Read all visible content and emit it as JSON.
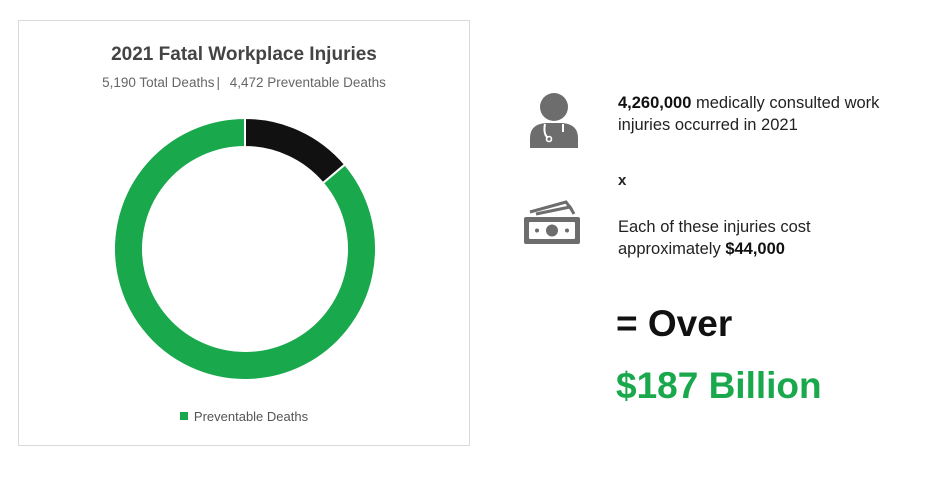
{
  "chart_data": {
    "type": "pie",
    "style": "donut",
    "title": "2021 Fatal Workplace Injuries",
    "subtitle_total": "5,190 Total Deaths",
    "subtitle_preventable": "4,472 Preventable Deaths",
    "total": 5190,
    "slices": [
      {
        "name": "Preventable Deaths",
        "value": 4472,
        "color": "#19a84c",
        "in_legend": true
      },
      {
        "name": "",
        "value": 718,
        "color": "#111111",
        "in_legend": false
      }
    ],
    "legend": {
      "placement": "bottom",
      "label": "Preventable Deaths",
      "color": "#19a84c"
    }
  },
  "facts": {
    "injuries_count": "4,260,000",
    "injuries_text": "medically consulted work",
    "injuries_text_2": "injuries occurred in 2021",
    "times_symbol": "x",
    "cost_text": "Each of these injuries cost",
    "cost_text_2_prefix": "approximately",
    "cost_value": "$44,000",
    "result_prefix": "= Over",
    "result_value": "$187 Billion",
    "result_color": "#19a84c"
  },
  "icons": {
    "doctor": "doctor-icon",
    "money": "money-icon"
  }
}
